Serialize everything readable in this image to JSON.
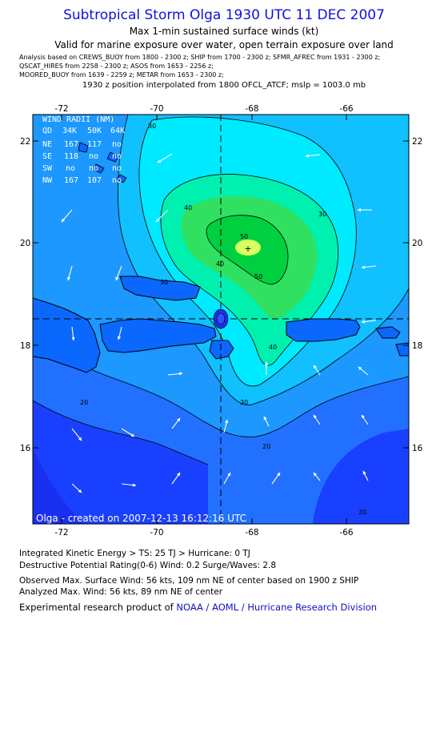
{
  "header": {
    "title": "Subtropical Storm Olga 1930 UTC 11 DEC 2007",
    "subtitle1": "Max 1-min sustained surface winds (kt)",
    "subtitle2": "Valid for marine exposure over water, open terrain exposure over land",
    "analysis_line1": "Analysis based on  CREWS_BUOY from 1800 - 2300 z;  SHIP from 1700 - 2300 z;  SFMR_AFREC from 1931 - 2300 z;",
    "analysis_line2": "QSCAT_HIRES from 2258 - 2300 z;  ASOS from 1653 - 2256 z;",
    "analysis_line3": "MOORED_BUOY from 1639 - 2259 z;  METAR from 1653 - 2300 z;",
    "position_line": "1930 z position interpolated from 1800 OFCL_ATCF; mslp = 1003.0 mb"
  },
  "map": {
    "lon_ticks": [
      "-72",
      "-70",
      "-68",
      "-66"
    ],
    "lat_ticks": [
      "22",
      "20",
      "18",
      "16"
    ],
    "contour_labels": [
      "30",
      "40",
      "50",
      "20",
      "30",
      "40",
      "30",
      "20",
      "30",
      "40",
      "50",
      "20"
    ],
    "wind_radii": {
      "heading": "WIND RADII (NM)",
      "rows": [
        [
          "QD",
          "34K",
          "50K",
          "64K"
        ],
        [
          "NE",
          "167",
          "117",
          "no"
        ],
        [
          "SE",
          "118",
          "no",
          "no"
        ],
        [
          "SW",
          "no",
          "no",
          "no"
        ],
        [
          "NW",
          "167",
          "107",
          "no"
        ]
      ]
    },
    "created": "Olga - created on 2007-12-13 16:12:16 UTC",
    "colors": {
      "ocean_low": "#1a40ff",
      "band_20": "#2270ff",
      "band_25": "#1c98ff",
      "band_30": "#10c0ff",
      "band_35": "#00eaff",
      "band_40": "#00f0b0",
      "band_45": "#30e060",
      "band_50": "#00d040",
      "band_55": "#d8ff60",
      "land": "#0a68ff"
    }
  },
  "footer": {
    "ike_line": "Integrated Kinetic Energy > TS: 25 TJ   > Hurricane: 0 TJ",
    "dpr_line": "Destructive Potential Rating(0-6)   Wind: 0.2 Surge/Waves: 2.8",
    "obs_line": "Observed Max. Surface Wind: 56 kts, 109 nm NE of center based on 1900 z SHIP",
    "ana_line": "Analyzed Max. Wind: 56 kts, 89 nm NE of center",
    "product_prefix": "Experimental research product of ",
    "product_link": "NOAA / AOML / Hurricane Research Division"
  }
}
